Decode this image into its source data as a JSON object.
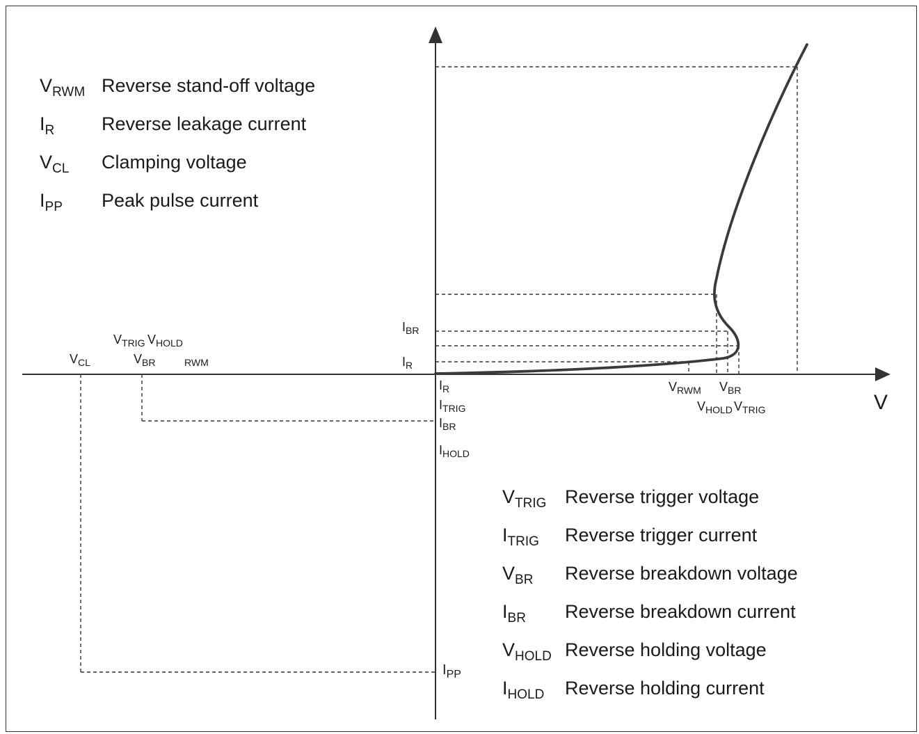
{
  "legend_top": [
    {
      "sym": "V",
      "sub": "RWM",
      "text": "Reverse stand-off voltage"
    },
    {
      "sym": "I",
      "sub": "R",
      "text": "Reverse leakage current"
    },
    {
      "sym": "V",
      "sub": "CL",
      "text": "Clamping voltage"
    },
    {
      "sym": "I",
      "sub": "PP",
      "text": "Peak pulse current"
    }
  ],
  "legend_bottom": [
    {
      "sym": "V",
      "sub": "TRIG",
      "text": "Reverse trigger voltage"
    },
    {
      "sym": "I",
      "sub": "TRIG",
      "text": "Reverse trigger current"
    },
    {
      "sym": "V",
      "sub": "BR",
      "text": "Reverse breakdown voltage"
    },
    {
      "sym": "I",
      "sub": "BR",
      "text": "Reverse breakdown current"
    },
    {
      "sym": "V",
      "sub": "HOLD",
      "text": "Reverse holding voltage"
    },
    {
      "sym": "I",
      "sub": "HOLD",
      "text": "Reverse holding current"
    }
  ],
  "axis": {
    "x_label": "V"
  },
  "pos_current_labels": [
    {
      "sym": "I",
      "sub": "BR"
    },
    {
      "sym": "I",
      "sub": "R"
    }
  ],
  "pos_voltage_labels": [
    {
      "sym": "V",
      "sub": "RWM"
    },
    {
      "sym": "V",
      "sub": "BR"
    },
    {
      "sym": "V",
      "sub": "HOLD"
    },
    {
      "sym": "V",
      "sub": "TRIG"
    }
  ],
  "neg_voltage_labels": [
    {
      "sym": "V",
      "sub": "TRIG"
    },
    {
      "sym": "V",
      "sub": "HOLD"
    },
    {
      "sym": "V",
      "sub": "CL"
    },
    {
      "sym": "V",
      "sub": "BR"
    },
    {
      "sym": "",
      "sub": "RWM"
    }
  ],
  "neg_current_labels": [
    {
      "sym": "I",
      "sub": "R"
    },
    {
      "sym": "I",
      "sub": "TRIG"
    },
    {
      "sym": "I",
      "sub": "BR"
    },
    {
      "sym": "I",
      "sub": "HOLD"
    },
    {
      "sym": "I",
      "sub": "PP"
    }
  ]
}
